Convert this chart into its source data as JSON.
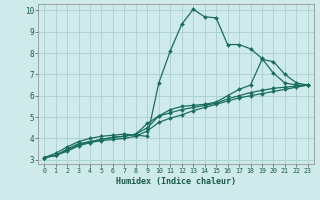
{
  "xlabel": "Humidex (Indice chaleur)",
  "xlim": [
    -0.5,
    23.5
  ],
  "ylim": [
    2.8,
    10.3
  ],
  "xticks": [
    0,
    1,
    2,
    3,
    4,
    5,
    6,
    7,
    8,
    9,
    10,
    11,
    12,
    13,
    14,
    15,
    16,
    17,
    18,
    19,
    20,
    21,
    22,
    23
  ],
  "yticks": [
    3,
    4,
    5,
    6,
    7,
    8,
    9,
    10
  ],
  "bg_color": "#ceeaea",
  "grid_color": "#aacece",
  "line_color": "#1a6e60",
  "line_width": 0.9,
  "marker": "D",
  "marker_size": 2.0,
  "lines": [
    {
      "x": [
        0,
        1,
        2,
        3,
        4,
        5,
        6,
        7,
        8,
        9,
        10,
        11,
        12,
        13,
        14,
        15,
        16,
        17,
        18,
        19,
        20,
        21,
        22,
        23
      ],
      "y": [
        3.1,
        3.3,
        3.6,
        3.85,
        4.0,
        4.1,
        4.15,
        4.2,
        4.15,
        4.1,
        6.6,
        8.1,
        9.35,
        10.05,
        9.7,
        9.65,
        8.4,
        8.4,
        8.2,
        7.75,
        7.05,
        6.6,
        6.5,
        6.5
      ]
    },
    {
      "x": [
        0,
        1,
        2,
        3,
        4,
        5,
        6,
        7,
        8,
        9,
        10,
        11,
        12,
        13,
        14,
        15,
        16,
        17,
        18,
        19,
        20,
        21,
        22,
        23
      ],
      "y": [
        3.1,
        3.2,
        3.5,
        3.75,
        3.85,
        3.95,
        4.05,
        4.1,
        4.2,
        4.5,
        5.05,
        5.35,
        5.5,
        5.55,
        5.6,
        5.7,
        6.0,
        6.3,
        6.5,
        7.7,
        7.6,
        7.0,
        6.6,
        6.5
      ]
    },
    {
      "x": [
        0,
        1,
        2,
        3,
        4,
        5,
        6,
        7,
        8,
        9,
        10,
        11,
        12,
        13,
        14,
        15,
        16,
        17,
        18,
        19,
        20,
        21,
        22,
        23
      ],
      "y": [
        3.1,
        3.2,
        3.45,
        3.7,
        3.85,
        3.95,
        4.05,
        4.1,
        4.2,
        4.7,
        5.05,
        5.2,
        5.35,
        5.45,
        5.55,
        5.65,
        5.85,
        6.0,
        6.15,
        6.25,
        6.35,
        6.4,
        6.45,
        6.5
      ]
    },
    {
      "x": [
        0,
        1,
        2,
        3,
        4,
        5,
        6,
        7,
        8,
        9,
        10,
        11,
        12,
        13,
        14,
        15,
        16,
        17,
        18,
        19,
        20,
        21,
        22,
        23
      ],
      "y": [
        3.1,
        3.2,
        3.4,
        3.65,
        3.8,
        3.9,
        3.95,
        4.0,
        4.1,
        4.35,
        4.75,
        4.95,
        5.1,
        5.3,
        5.45,
        5.6,
        5.75,
        5.9,
        6.0,
        6.1,
        6.2,
        6.3,
        6.4,
        6.5
      ]
    }
  ]
}
